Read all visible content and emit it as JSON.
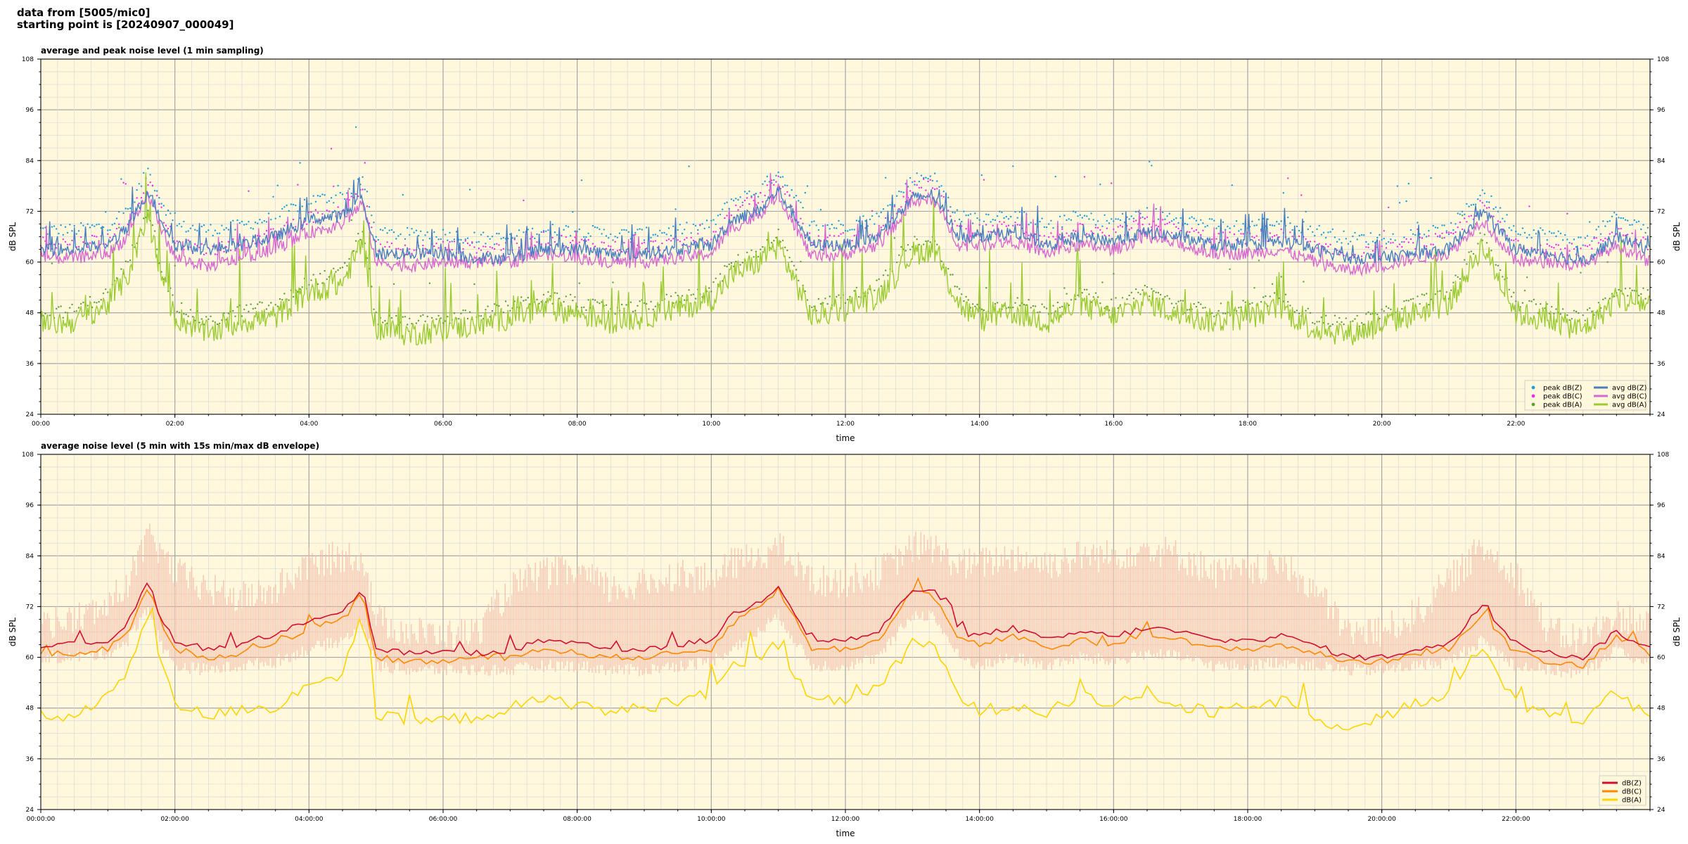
{
  "header": {
    "line1": "data from [5005/mic0]",
    "line2": "starting point is [20240907_000049]"
  },
  "colors": {
    "background": "#fff8dc",
    "grid_major": "#a6a6a6",
    "grid_minor": "#d9d9d9",
    "peak_z": "#1f9bd6",
    "peak_c": "#ee2ee8",
    "peak_a": "#5c9e3a",
    "avg_z": "#4a7fbf",
    "avg_c": "#d66ad0",
    "avg_a": "#9ccc35",
    "dbz": "#d0102f",
    "dbc": "#ff8a00",
    "dba": "#ffd400",
    "envelope": "#f3b8a8"
  },
  "chart_data": [
    {
      "type": "line",
      "title": "average and peak noise level (1 min sampling)",
      "xlabel": "time",
      "ylabel": "dB SPL",
      "xlim_hours": [
        0,
        24
      ],
      "ylim": [
        24,
        108
      ],
      "yticks": [
        24,
        36,
        48,
        60,
        72,
        84,
        96,
        108
      ],
      "xtick_hours": [
        0,
        2,
        4,
        6,
        8,
        10,
        12,
        14,
        16,
        18,
        20,
        22
      ],
      "xtick_labels": [
        "00:00",
        "02:00",
        "04:00",
        "06:00",
        "08:00",
        "10:00",
        "12:00",
        "14:00",
        "16:00",
        "18:00",
        "20:00",
        "22:00"
      ],
      "grid": true,
      "legend_position": "lower-right",
      "legend": [
        "peak dB(Z)",
        "peak dB(C)",
        "peak dB(A)",
        "avg dB(Z)",
        "avg dB(C)",
        "avg dB(A)"
      ],
      "x_hours": [
        0,
        0.5,
        1.0,
        1.3,
        1.6,
        1.8,
        2.0,
        2.5,
        3.0,
        3.5,
        4.0,
        4.5,
        4.8,
        5.0,
        5.5,
        6.0,
        6.5,
        7.0,
        7.5,
        8.0,
        8.5,
        9.0,
        9.5,
        10.0,
        10.3,
        10.7,
        11.0,
        11.5,
        12.0,
        12.5,
        13.0,
        13.3,
        13.7,
        14.0,
        14.5,
        15.0,
        15.5,
        16.0,
        16.5,
        17.0,
        17.5,
        18.0,
        18.5,
        19.0,
        19.5,
        20.0,
        20.5,
        21.0,
        21.5,
        22.0,
        22.5,
        23.0,
        23.5,
        24.0
      ],
      "series": [
        {
          "name": "avg dB(Z)",
          "values": [
            63,
            63,
            64,
            68,
            77,
            70,
            64,
            63,
            64,
            66,
            70,
            71,
            75,
            62,
            62,
            62,
            61,
            61,
            63,
            63,
            62,
            62,
            63,
            64,
            70,
            72,
            77,
            64,
            64,
            66,
            75,
            76,
            66,
            66,
            67,
            64,
            66,
            65,
            67,
            66,
            64,
            64,
            65,
            63,
            61,
            61,
            62,
            63,
            72,
            63,
            62,
            60,
            66,
            63
          ]
        },
        {
          "name": "avg dB(C)",
          "values": [
            61,
            61,
            62,
            66,
            76,
            68,
            61,
            59,
            61,
            63,
            67,
            69,
            74,
            60,
            59,
            60,
            60,
            60,
            62,
            61,
            60,
            60,
            61,
            62,
            68,
            71,
            76,
            61,
            62,
            64,
            74,
            75,
            64,
            64,
            65,
            62,
            64,
            63,
            66,
            64,
            62,
            62,
            63,
            60,
            58,
            59,
            61,
            62,
            70,
            60,
            60,
            59,
            64,
            60
          ]
        },
        {
          "name": "avg dB(A)",
          "values": [
            45,
            46,
            50,
            57,
            71,
            56,
            47,
            43,
            46,
            47,
            53,
            55,
            65,
            44,
            43,
            44,
            45,
            47,
            49,
            48,
            46,
            47,
            49,
            51,
            57,
            60,
            64,
            47,
            49,
            52,
            62,
            63,
            50,
            46,
            48,
            46,
            50,
            47,
            51,
            47,
            46,
            47,
            49,
            44,
            43,
            45,
            48,
            50,
            64,
            48,
            46,
            44,
            51,
            50
          ]
        }
      ],
      "peak_offsets_db": {
        "peak dB(Z)": 4,
        "peak dB(C)": 3,
        "peak dB(A)": 2
      }
    },
    {
      "type": "line",
      "title": "average noise level (5 min with 15s min/max dB envelope)",
      "xlabel": "time",
      "ylabel": "dB SPL",
      "xlim_hours": [
        0,
        24
      ],
      "ylim": [
        24,
        108
      ],
      "yticks": [
        24,
        36,
        48,
        60,
        72,
        84,
        96,
        108
      ],
      "xtick_hours": [
        0,
        2,
        4,
        6,
        8,
        10,
        12,
        14,
        16,
        18,
        20,
        22
      ],
      "xtick_labels": [
        "00:00:00",
        "02:00:00",
        "04:00:00",
        "06:00:00",
        "08:00:00",
        "10:00:00",
        "12:00:00",
        "14:00:00",
        "16:00:00",
        "18:00:00",
        "20:00:00",
        "22:00:00"
      ],
      "grid": true,
      "legend_position": "lower-right",
      "legend": [
        "dB(Z)",
        "dB(C)",
        "dB(A)"
      ],
      "x_hours": [
        0,
        0.5,
        1.0,
        1.3,
        1.6,
        1.8,
        2.0,
        2.5,
        3.0,
        3.5,
        4.0,
        4.5,
        4.8,
        5.0,
        5.5,
        6.0,
        6.5,
        7.0,
        7.5,
        8.0,
        8.5,
        9.0,
        9.5,
        10.0,
        10.3,
        10.7,
        11.0,
        11.5,
        12.0,
        12.5,
        13.0,
        13.3,
        13.7,
        14.0,
        14.5,
        15.0,
        15.5,
        16.0,
        16.5,
        17.0,
        17.5,
        18.0,
        18.5,
        19.0,
        19.5,
        20.0,
        20.5,
        21.0,
        21.5,
        22.0,
        22.5,
        23.0,
        23.5,
        24.0
      ],
      "series": [
        {
          "name": "dB(Z)",
          "values": [
            63,
            63,
            64,
            68,
            78,
            69,
            64,
            62,
            63,
            65,
            69,
            71,
            76,
            62,
            61,
            61,
            61,
            61,
            64,
            63,
            62,
            62,
            63,
            64,
            70,
            73,
            77,
            64,
            64,
            66,
            76,
            76,
            66,
            65,
            67,
            64,
            66,
            65,
            67,
            66,
            64,
            64,
            65,
            63,
            60,
            60,
            62,
            63,
            72,
            63,
            61,
            60,
            66,
            62
          ]
        },
        {
          "name": "dB(C)",
          "values": [
            61,
            61,
            62,
            66,
            77,
            67,
            62,
            60,
            61,
            63,
            67,
            69,
            75,
            60,
            59,
            59,
            60,
            60,
            62,
            61,
            60,
            60,
            61,
            62,
            68,
            72,
            76,
            62,
            62,
            64,
            75,
            75,
            64,
            63,
            65,
            62,
            64,
            63,
            66,
            64,
            62,
            62,
            63,
            61,
            59,
            59,
            61,
            62,
            70,
            61,
            59,
            58,
            65,
            61
          ]
        },
        {
          "name": "dB(A)",
          "values": [
            46,
            46,
            51,
            56,
            71,
            58,
            49,
            46,
            48,
            48,
            54,
            56,
            70,
            46,
            45,
            45,
            46,
            48,
            50,
            49,
            47,
            48,
            50,
            52,
            58,
            60,
            63,
            49,
            50,
            53,
            63,
            63,
            51,
            47,
            49,
            47,
            51,
            48,
            52,
            48,
            47,
            48,
            50,
            45,
            44,
            46,
            49,
            51,
            63,
            49,
            47,
            45,
            52,
            45
          ]
        }
      ],
      "envelope_max_db": [
        68,
        69,
        72,
        78,
        88,
        85,
        80,
        76,
        74,
        76,
        82,
        84,
        84,
        69,
        66,
        65,
        66,
        76,
        80,
        80,
        76,
        77,
        80,
        78,
        82,
        84,
        86,
        78,
        78,
        80,
        86,
        86,
        82,
        82,
        84,
        82,
        84,
        84,
        86,
        84,
        80,
        80,
        82,
        76,
        66,
        66,
        70,
        78,
        86,
        80,
        66,
        64,
        70,
        68
      ],
      "envelope_min_db": [
        60,
        60,
        61,
        64,
        72,
        63,
        58,
        57,
        58,
        59,
        62,
        64,
        68,
        58,
        57,
        57,
        57,
        57,
        58,
        58,
        57,
        57,
        58,
        59,
        62,
        66,
        70,
        58,
        58,
        60,
        70,
        70,
        60,
        58,
        60,
        58,
        60,
        59,
        61,
        60,
        58,
        58,
        59,
        58,
        57,
        57,
        58,
        59,
        64,
        58,
        57,
        56,
        62,
        58
      ]
    }
  ]
}
